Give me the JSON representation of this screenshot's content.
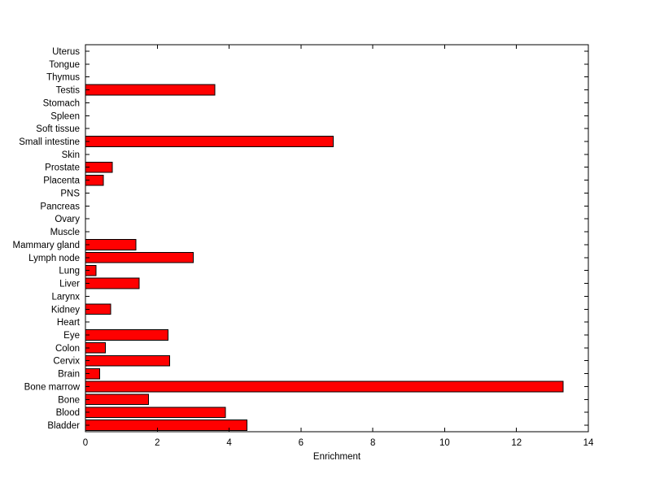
{
  "figure": {
    "background": "#ffffff",
    "axis_color": "#000000"
  },
  "chart_data": {
    "type": "bar",
    "orientation": "horizontal",
    "title": "",
    "xlabel": "Enrichment",
    "ylabel": "",
    "xlim": [
      0,
      14
    ],
    "xticks": [
      0,
      2,
      4,
      6,
      8,
      10,
      12,
      14
    ],
    "grid": false,
    "legend": null,
    "bar_color": "#ff0000",
    "bar_edge_color": "#000000",
    "categories": [
      "Uterus",
      "Tongue",
      "Thymus",
      "Testis",
      "Stomach",
      "Spleen",
      "Soft tissue",
      "Small intestine",
      "Skin",
      "Prostate",
      "Placenta",
      "PNS",
      "Pancreas",
      "Ovary",
      "Muscle",
      "Mammary gland",
      "Lymph node",
      "Lung",
      "Liver",
      "Larynx",
      "Kidney",
      "Heart",
      "Eye",
      "Colon",
      "Cervix",
      "Brain",
      "Bone marrow",
      "Bone",
      "Blood",
      "Bladder"
    ],
    "values": [
      0,
      0,
      0,
      3.6,
      0,
      0,
      0,
      6.9,
      0,
      0.75,
      0.5,
      0,
      0,
      0,
      0,
      1.4,
      3.0,
      0.3,
      1.5,
      0,
      0.7,
      0,
      2.3,
      0.55,
      2.35,
      0.4,
      13.3,
      1.75,
      3.9,
      4.5
    ]
  }
}
